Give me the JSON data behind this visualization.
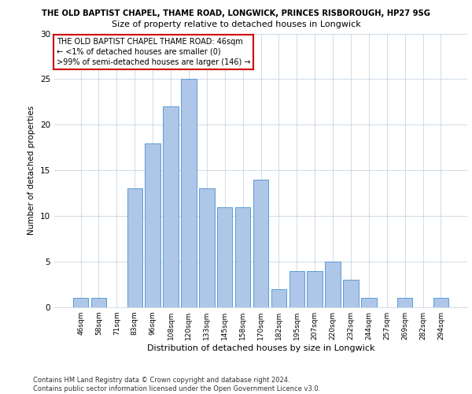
{
  "title_line1": "THE OLD BAPTIST CHAPEL, THAME ROAD, LONGWICK, PRINCES RISBOROUGH, HP27 9SG",
  "title_line2": "Size of property relative to detached houses in Longwick",
  "xlabel": "Distribution of detached houses by size in Longwick",
  "ylabel": "Number of detached properties",
  "categories": [
    "46sqm",
    "58sqm",
    "71sqm",
    "83sqm",
    "96sqm",
    "108sqm",
    "120sqm",
    "133sqm",
    "145sqm",
    "158sqm",
    "170sqm",
    "182sqm",
    "195sqm",
    "207sqm",
    "220sqm",
    "232sqm",
    "244sqm",
    "257sqm",
    "269sqm",
    "282sqm",
    "294sqm"
  ],
  "values": [
    1,
    1,
    0,
    13,
    18,
    22,
    25,
    13,
    11,
    11,
    14,
    2,
    4,
    4,
    5,
    3,
    1,
    0,
    1,
    0,
    1
  ],
  "bar_color": "#aec6e8",
  "bar_edge_color": "#5b9bd5",
  "ylim": [
    0,
    30
  ],
  "yticks": [
    0,
    5,
    10,
    15,
    20,
    25,
    30
  ],
  "annotation_box_text": "THE OLD BAPTIST CHAPEL THAME ROAD: 46sqm\n← <1% of detached houses are smaller (0)\n>99% of semi-detached houses are larger (146) →",
  "annotation_box_color": "#ffffff",
  "annotation_box_edge_color": "#cc0000",
  "footer_text": "Contains HM Land Registry data © Crown copyright and database right 2024.\nContains public sector information licensed under the Open Government Licence v3.0.",
  "background_color": "#ffffff",
  "grid_color": "#c8d4e0"
}
